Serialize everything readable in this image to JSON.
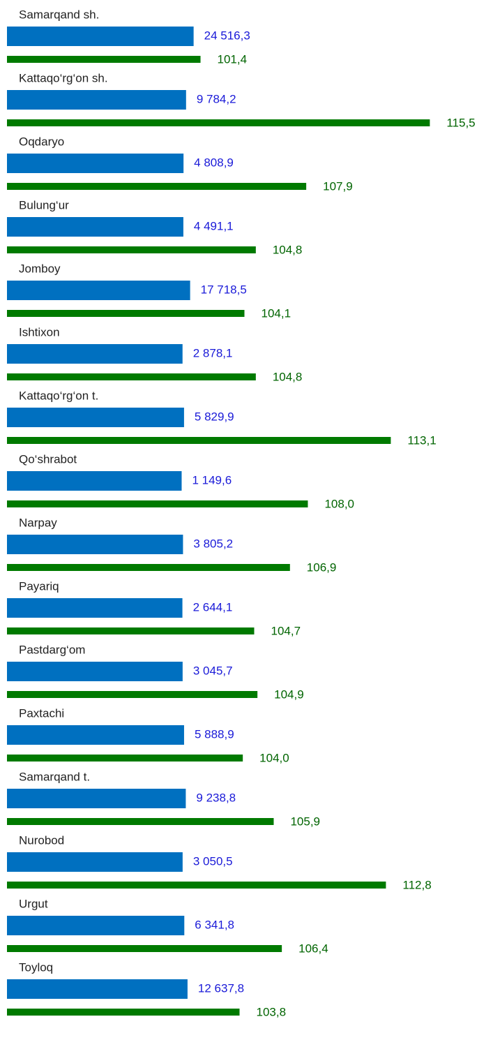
{
  "chart_data": {
    "type": "bar",
    "orientation": "horizontal",
    "categories": [
      "Samarqand sh.",
      "Kattaqo‘rg‘on sh.",
      "Oqdaryo",
      "Bulung‘ur",
      "Jomboy",
      "Ishtixon",
      "Kattaqo‘rg‘on t.",
      "Qo‘shrabot",
      "Narpay",
      "Payariq",
      "Pastdarg‘om",
      "Paxtachi",
      "Samarqand t.",
      "Nurobod",
      "Urgut",
      "Toyloq"
    ],
    "series": [
      {
        "color": "#0070c0",
        "label_color": "#1a1ad8",
        "xlim": [
          -340000,
          578000
        ],
        "values": [
          24516.3,
          9784.2,
          4808.9,
          4491.1,
          17718.5,
          2878.1,
          5829.9,
          1149.6,
          3805.2,
          2644.1,
          3045.7,
          5888.9,
          9238.8,
          3050.5,
          6341.8,
          12637.8
        ],
        "value_labels": [
          "24 516,3",
          "9 784,2",
          "4 808,9",
          "4 491,1",
          "17 718,5",
          "2 878,1",
          "5 829,9",
          "1 149,6",
          "3 805,2",
          "2 644,1",
          "3 045,7",
          "5 888,9",
          "9 238,8",
          "3 050,5",
          "6 341,8",
          "12 637,8"
        ]
      },
      {
        "color": "#007a00",
        "label_color": "#006400",
        "xlim": [
          89.5,
          118.4
        ],
        "values": [
          101.4,
          115.5,
          107.9,
          104.8,
          104.1,
          104.8,
          113.1,
          108.0,
          106.9,
          104.7,
          104.9,
          104.0,
          105.9,
          112.8,
          106.4,
          103.8
        ],
        "value_labels": [
          "101,4",
          "115,5",
          "107,9",
          "104,8",
          "104,1",
          "104,8",
          "113,1",
          "108,0",
          "106,9",
          "104,7",
          "104,9",
          "104,0",
          "105,9",
          "112,8",
          "106,4",
          "103,8"
        ]
      }
    ]
  }
}
